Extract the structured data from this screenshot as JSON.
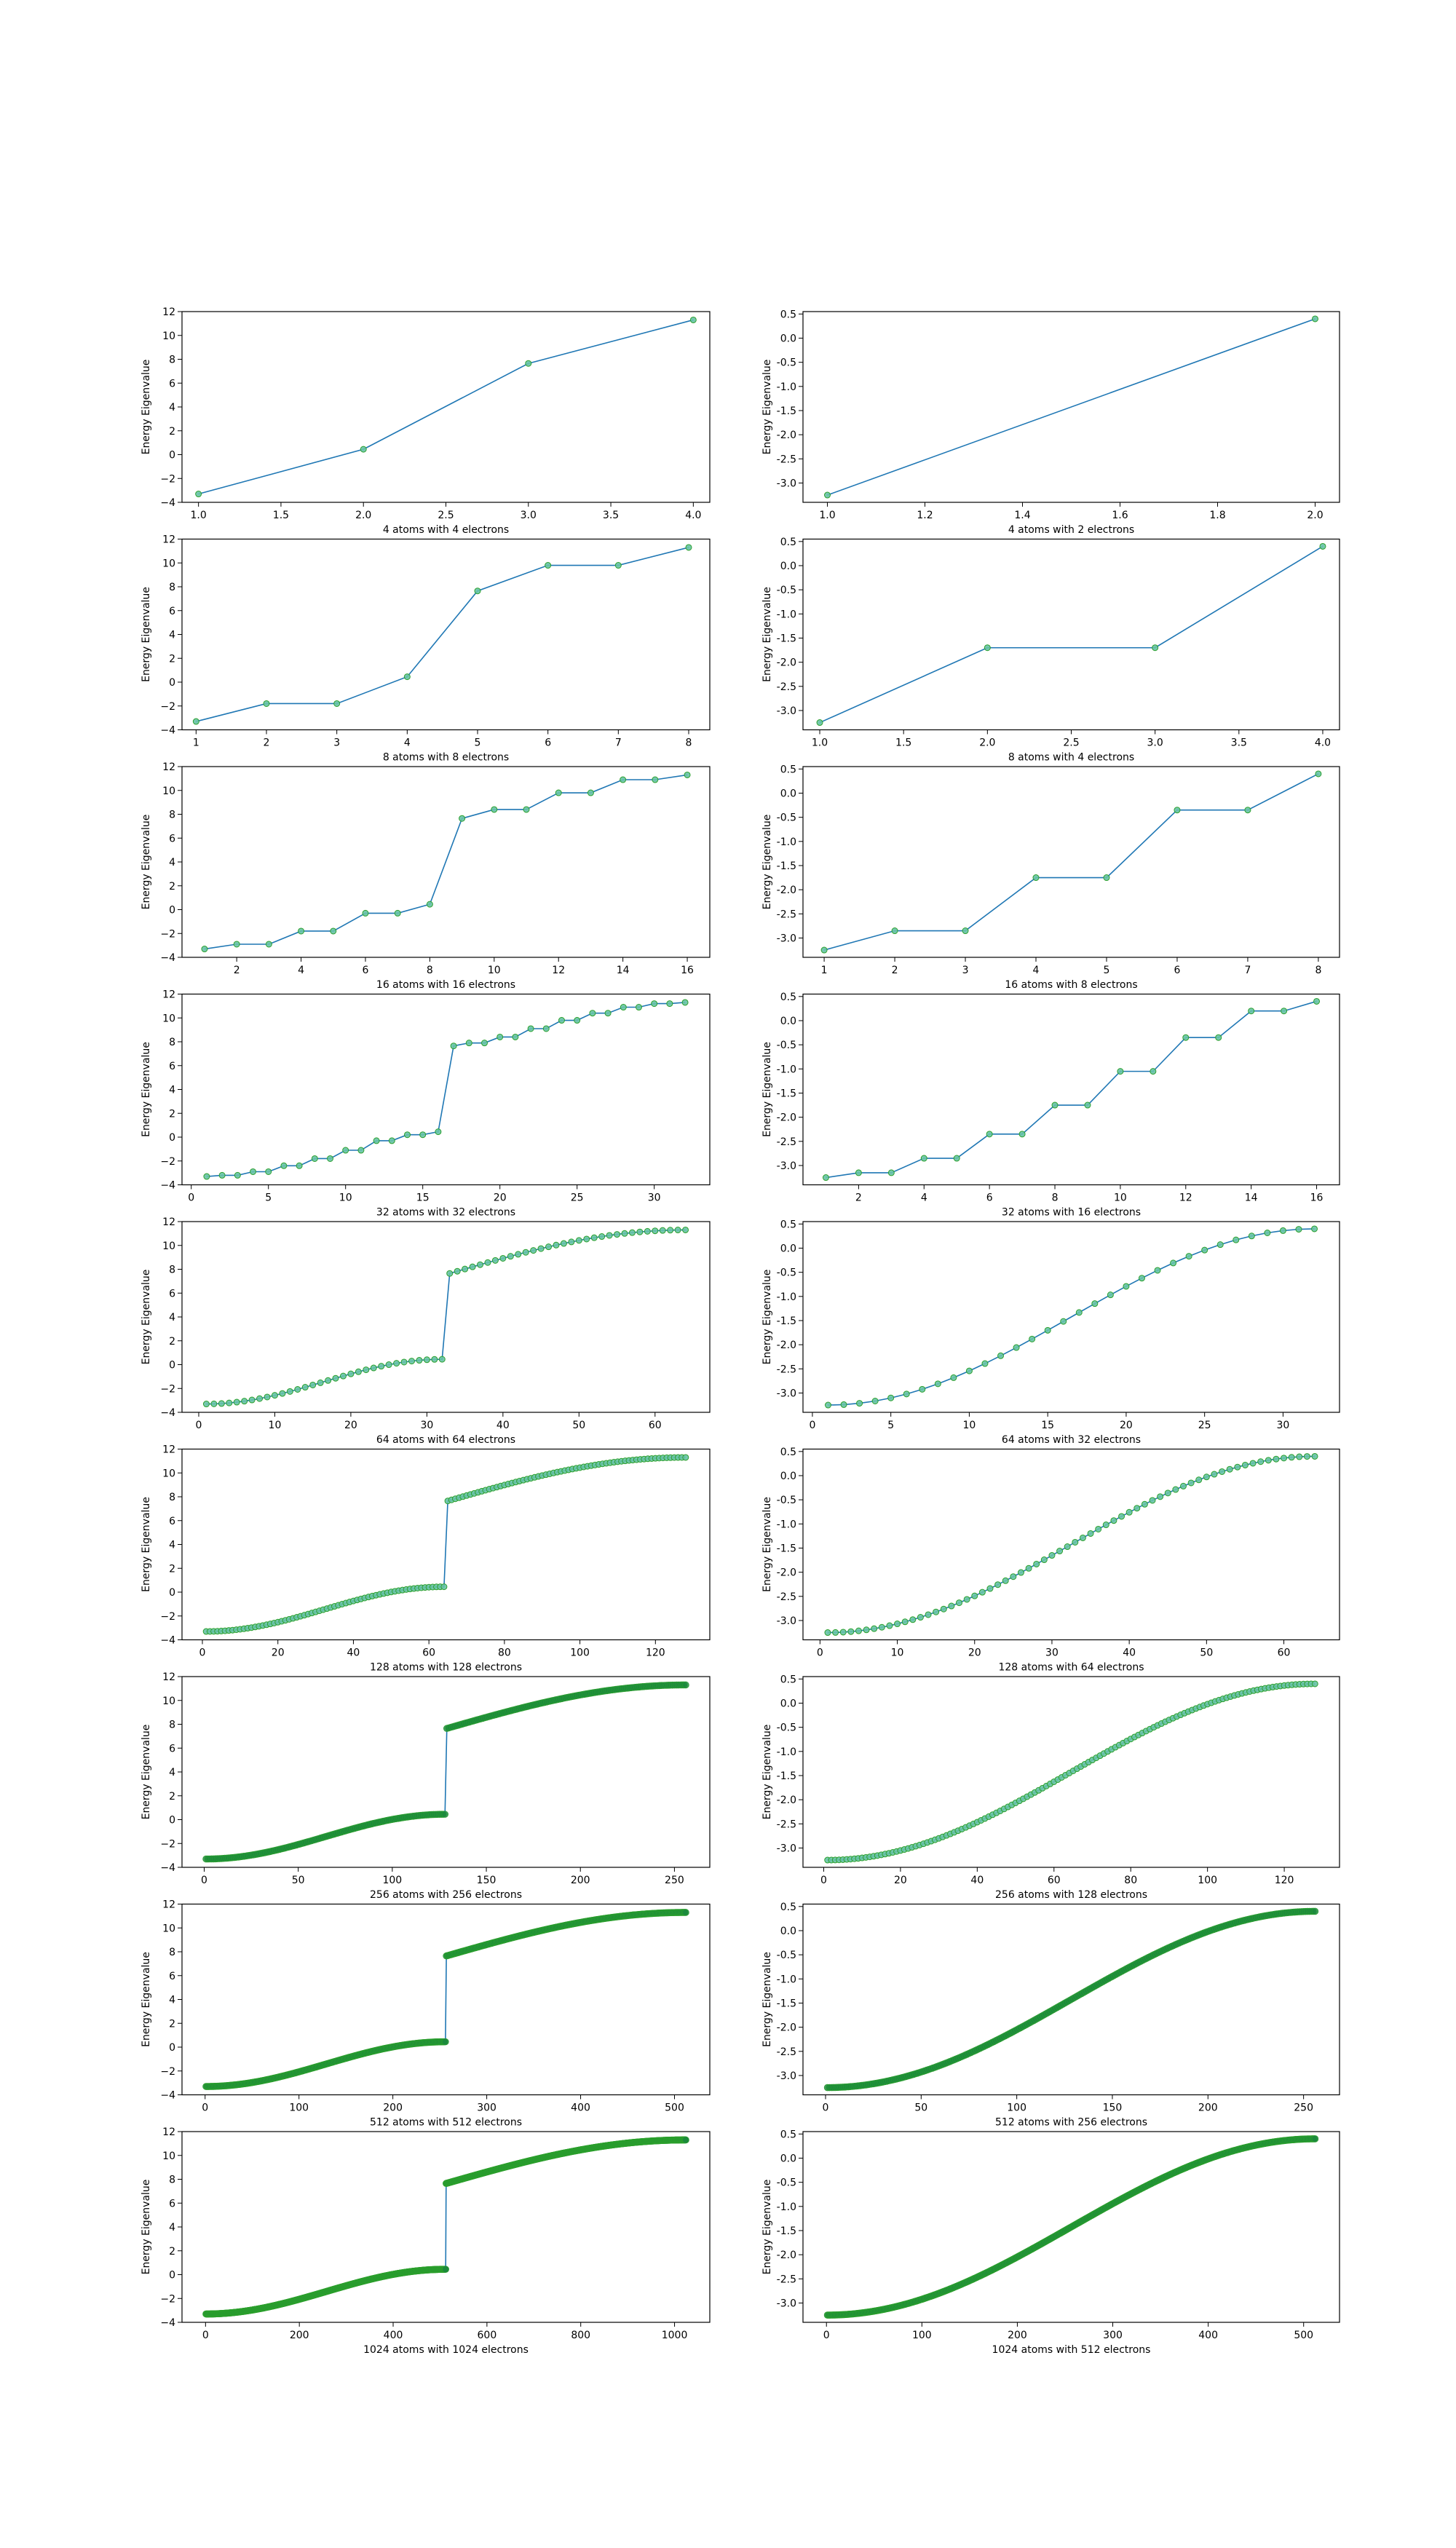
{
  "colors": {
    "line": "#1f77b4",
    "marker_fill": "#66c2a5",
    "marker_edge": "#2ca02c",
    "dense_marker": "#1b8a3c",
    "frame": "#000000"
  },
  "chart_data": [
    {
      "type": "line",
      "xlabel": "4 atoms with 4 electrons",
      "ylabel": "Energy Eigenvalue",
      "y": [
        -3.3,
        0.45,
        7.65,
        11.3
      ],
      "xlim": [
        0.9,
        4.1
      ],
      "ylim": [
        -4,
        12
      ],
      "xticks": [
        1.0,
        1.5,
        2.0,
        2.5,
        3.0,
        3.5,
        4.0
      ],
      "xticklabels": [
        "1.0",
        "1.5",
        "2.0",
        "2.5",
        "3.0",
        "3.5",
        "4.0"
      ],
      "yticks": [
        -4,
        -2,
        0,
        2,
        4,
        6,
        8,
        10,
        12
      ],
      "yticklabels": [
        "−4",
        "−2",
        "0",
        "2",
        "4",
        "6",
        "8",
        "10",
        "12"
      ]
    },
    {
      "type": "line",
      "xlabel": "4 atoms with 2 electrons",
      "ylabel": "Energy Eigenvalue",
      "y": [
        -3.25,
        0.4
      ],
      "xlim": [
        0.95,
        2.05
      ],
      "ylim": [
        -3.4,
        0.55
      ],
      "xticks": [
        1.0,
        1.2,
        1.4,
        1.6,
        1.8,
        2.0
      ],
      "xticklabels": [
        "1.0",
        "1.2",
        "1.4",
        "1.6",
        "1.8",
        "2.0"
      ],
      "yticks": [
        -3.0,
        -2.5,
        -2.0,
        -1.5,
        -1.0,
        -0.5,
        0.0,
        0.5
      ],
      "yticklabels": [
        "-3.0",
        "-2.5",
        "-2.0",
        "-1.5",
        "-1.0",
        "-0.5",
        "0.0",
        "0.5"
      ]
    },
    {
      "type": "line",
      "xlabel": "8 atoms with 8 electrons",
      "ylabel": "Energy Eigenvalue",
      "y": [
        -3.3,
        -1.8,
        -1.8,
        0.45,
        7.65,
        9.8,
        9.8,
        11.3
      ],
      "xlim": [
        0.8,
        8.3
      ],
      "ylim": [
        -4,
        12
      ],
      "xticks": [
        1,
        2,
        3,
        4,
        5,
        6,
        7,
        8
      ],
      "xticklabels": [
        "1",
        "2",
        "3",
        "4",
        "5",
        "6",
        "7",
        "8"
      ],
      "yticks": [
        -4,
        -2,
        0,
        2,
        4,
        6,
        8,
        10,
        12
      ],
      "yticklabels": [
        "−4",
        "−2",
        "0",
        "2",
        "4",
        "6",
        "8",
        "10",
        "12"
      ]
    },
    {
      "type": "line",
      "xlabel": "8 atoms with 4 electrons",
      "ylabel": "Energy Eigenvalue",
      "y": [
        -3.25,
        -1.7,
        -1.7,
        0.4
      ],
      "xlim": [
        0.9,
        4.1
      ],
      "ylim": [
        -3.4,
        0.55
      ],
      "xticks": [
        1.0,
        1.5,
        2.0,
        2.5,
        3.0,
        3.5,
        4.0
      ],
      "xticklabels": [
        "1.0",
        "1.5",
        "2.0",
        "2.5",
        "3.0",
        "3.5",
        "4.0"
      ],
      "yticks": [
        -3.0,
        -2.5,
        -2.0,
        -1.5,
        -1.0,
        -0.5,
        0.0,
        0.5
      ],
      "yticklabels": [
        "-3.0",
        "-2.5",
        "-2.0",
        "-1.5",
        "-1.0",
        "-0.5",
        "0.0",
        "0.5"
      ]
    },
    {
      "type": "line",
      "xlabel": "16 atoms with 16 electrons",
      "ylabel": "Energy Eigenvalue",
      "y": [
        -3.3,
        -2.9,
        -2.9,
        -1.8,
        -1.8,
        -0.3,
        -0.3,
        0.45,
        7.65,
        8.4,
        8.4,
        9.8,
        9.8,
        10.9,
        10.9,
        11.3
      ],
      "xlim": [
        0.3,
        16.7
      ],
      "ylim": [
        -4,
        12
      ],
      "xticks": [
        2,
        4,
        6,
        8,
        10,
        12,
        14,
        16
      ],
      "xticklabels": [
        "2",
        "4",
        "6",
        "8",
        "10",
        "12",
        "14",
        "16"
      ],
      "yticks": [
        -4,
        -2,
        0,
        2,
        4,
        6,
        8,
        10,
        12
      ],
      "yticklabels": [
        "−4",
        "−2",
        "0",
        "2",
        "4",
        "6",
        "8",
        "10",
        "12"
      ]
    },
    {
      "type": "line",
      "xlabel": "16 atoms with 8 electrons",
      "ylabel": "Energy Eigenvalue",
      "y": [
        -3.25,
        -2.85,
        -2.85,
        -1.75,
        -1.75,
        -0.35,
        -0.35,
        0.4
      ],
      "xlim": [
        0.7,
        8.3
      ],
      "ylim": [
        -3.4,
        0.55
      ],
      "xticks": [
        1,
        2,
        3,
        4,
        5,
        6,
        7,
        8
      ],
      "xticklabels": [
        "1",
        "2",
        "3",
        "4",
        "5",
        "6",
        "7",
        "8"
      ],
      "yticks": [
        -3.0,
        -2.5,
        -2.0,
        -1.5,
        -1.0,
        -0.5,
        0.0,
        0.5
      ],
      "yticklabels": [
        "-3.0",
        "-2.5",
        "-2.0",
        "-1.5",
        "-1.0",
        "-0.5",
        "0.0",
        "0.5"
      ]
    },
    {
      "type": "line",
      "xlabel": "32 atoms with 32 electrons",
      "ylabel": "Energy Eigenvalue",
      "y": [
        -3.3,
        -3.2,
        -3.2,
        -2.9,
        -2.9,
        -2.4,
        -2.4,
        -1.8,
        -1.8,
        -1.1,
        -1.1,
        -0.3,
        -0.3,
        0.2,
        0.2,
        0.45,
        7.65,
        7.9,
        7.9,
        8.4,
        8.4,
        9.1,
        9.1,
        9.8,
        9.8,
        10.4,
        10.4,
        10.9,
        10.9,
        11.2,
        11.2,
        11.3
      ],
      "xlim": [
        -0.6,
        33.6
      ],
      "ylim": [
        -4,
        12
      ],
      "xticks": [
        0,
        5,
        10,
        15,
        20,
        25,
        30
      ],
      "xticklabels": [
        "0",
        "5",
        "10",
        "15",
        "20",
        "25",
        "30"
      ],
      "yticks": [
        -4,
        -2,
        0,
        2,
        4,
        6,
        8,
        10,
        12
      ],
      "yticklabels": [
        "−4",
        "−2",
        "0",
        "2",
        "4",
        "6",
        "8",
        "10",
        "12"
      ]
    },
    {
      "type": "line",
      "xlabel": "32 atoms with 16 electrons",
      "ylabel": "Energy Eigenvalue",
      "y": [
        -3.25,
        -3.15,
        -3.15,
        -2.85,
        -2.85,
        -2.35,
        -2.35,
        -1.75,
        -1.75,
        -1.05,
        -1.05,
        -0.35,
        -0.35,
        0.2,
        0.2,
        0.4
      ],
      "xlim": [
        0.3,
        16.7
      ],
      "ylim": [
        -3.4,
        0.55
      ],
      "xticks": [
        2,
        4,
        6,
        8,
        10,
        12,
        14,
        16
      ],
      "xticklabels": [
        "2",
        "4",
        "6",
        "8",
        "10",
        "12",
        "14",
        "16"
      ],
      "yticks": [
        -3.0,
        -2.5,
        -2.0,
        -1.5,
        -1.0,
        -0.5,
        0.0,
        0.5
      ],
      "yticklabels": [
        "-3.0",
        "-2.5",
        "-2.0",
        "-1.5",
        "-1.0",
        "-0.5",
        "0.0",
        "0.5"
      ]
    },
    {
      "type": "line",
      "xlabel": "64 atoms with 64 electrons",
      "ylabel": "Energy Eigenvalue",
      "n": 64,
      "gap_at": 32,
      "lower_band": [
        -3.3,
        0.45
      ],
      "upper_band": [
        7.65,
        11.3
      ],
      "xlim": [
        -2.2,
        67.2
      ],
      "ylim": [
        -4,
        12
      ],
      "xticks": [
        0,
        10,
        20,
        30,
        40,
        50,
        60
      ],
      "xticklabels": [
        "0",
        "10",
        "20",
        "30",
        "40",
        "50",
        "60"
      ],
      "yticks": [
        -4,
        -2,
        0,
        2,
        4,
        6,
        8,
        10,
        12
      ],
      "yticklabels": [
        "−4",
        "−2",
        "0",
        "2",
        "4",
        "6",
        "8",
        "10",
        "12"
      ]
    },
    {
      "type": "line",
      "xlabel": "64 atoms with 32 electrons",
      "ylabel": "Energy Eigenvalue",
      "n": 32,
      "band": [
        -3.25,
        0.4
      ],
      "xlim": [
        -0.6,
        33.6
      ],
      "ylim": [
        -3.4,
        0.55
      ],
      "xticks": [
        0,
        5,
        10,
        15,
        20,
        25,
        30
      ],
      "xticklabels": [
        "0",
        "5",
        "10",
        "15",
        "20",
        "25",
        "30"
      ],
      "yticks": [
        -3.0,
        -2.5,
        -2.0,
        -1.5,
        -1.0,
        -0.5,
        0.0,
        0.5
      ],
      "yticklabels": [
        "-3.0",
        "-2.5",
        "-2.0",
        "-1.5",
        "-1.0",
        "-0.5",
        "0.0",
        "0.5"
      ]
    },
    {
      "type": "line",
      "xlabel": "128 atoms with 128 electrons",
      "ylabel": "Energy Eigenvalue",
      "n": 128,
      "gap_at": 64,
      "lower_band": [
        -3.3,
        0.45
      ],
      "upper_band": [
        7.65,
        11.3
      ],
      "xlim": [
        -5.4,
        134.4
      ],
      "ylim": [
        -4,
        12
      ],
      "xticks": [
        0,
        20,
        40,
        60,
        80,
        100,
        120
      ],
      "xticklabels": [
        "0",
        "20",
        "40",
        "60",
        "80",
        "100",
        "120"
      ],
      "yticks": [
        -4,
        -2,
        0,
        2,
        4,
        6,
        8,
        10,
        12
      ],
      "yticklabels": [
        "−4",
        "−2",
        "0",
        "2",
        "4",
        "6",
        "8",
        "10",
        "12"
      ]
    },
    {
      "type": "line",
      "xlabel": "128 atoms with 64 electrons",
      "ylabel": "Energy Eigenvalue",
      "n": 64,
      "band": [
        -3.25,
        0.4
      ],
      "xlim": [
        -2.2,
        67.2
      ],
      "ylim": [
        -3.4,
        0.55
      ],
      "xticks": [
        0,
        10,
        20,
        30,
        40,
        50,
        60
      ],
      "xticklabels": [
        "0",
        "10",
        "20",
        "30",
        "40",
        "50",
        "60"
      ],
      "yticks": [
        -3.0,
        -2.5,
        -2.0,
        -1.5,
        -1.0,
        -0.5,
        0.0,
        0.5
      ],
      "yticklabels": [
        "-3.0",
        "-2.5",
        "-2.0",
        "-1.5",
        "-1.0",
        "-0.5",
        "0.0",
        "0.5"
      ]
    },
    {
      "type": "line",
      "xlabel": "256 atoms with 256 electrons",
      "ylabel": "Energy Eigenvalue",
      "n": 256,
      "gap_at": 128,
      "lower_band": [
        -3.3,
        0.45
      ],
      "upper_band": [
        7.65,
        11.3
      ],
      "xlim": [
        -11.8,
        268.8
      ],
      "ylim": [
        -4,
        12
      ],
      "xticks": [
        0,
        50,
        100,
        150,
        200,
        250
      ],
      "xticklabels": [
        "0",
        "50",
        "100",
        "150",
        "200",
        "250"
      ],
      "yticks": [
        -4,
        -2,
        0,
        2,
        4,
        6,
        8,
        10,
        12
      ],
      "yticklabels": [
        "−4",
        "−2",
        "0",
        "2",
        "4",
        "6",
        "8",
        "10",
        "12"
      ]
    },
    {
      "type": "line",
      "xlabel": "256 atoms with 128 electrons",
      "ylabel": "Energy Eigenvalue",
      "n": 128,
      "band": [
        -3.25,
        0.4
      ],
      "xlim": [
        -5.4,
        134.4
      ],
      "ylim": [
        -3.4,
        0.55
      ],
      "xticks": [
        0,
        20,
        40,
        60,
        80,
        100,
        120
      ],
      "xticklabels": [
        "0",
        "20",
        "40",
        "60",
        "80",
        "100",
        "120"
      ],
      "yticks": [
        -3.0,
        -2.5,
        -2.0,
        -1.5,
        -1.0,
        -0.5,
        0.0,
        0.5
      ],
      "yticklabels": [
        "-3.0",
        "-2.5",
        "-2.0",
        "-1.5",
        "-1.0",
        "-0.5",
        "0.0",
        "0.5"
      ]
    },
    {
      "type": "line",
      "xlabel": "512 atoms with 512 electrons",
      "ylabel": "Energy Eigenvalue",
      "n": 512,
      "gap_at": 256,
      "lower_band": [
        -3.3,
        0.45
      ],
      "upper_band": [
        7.65,
        11.3
      ],
      "xlim": [
        -24.6,
        537.6
      ],
      "ylim": [
        -4,
        12
      ],
      "xticks": [
        0,
        100,
        200,
        300,
        400,
        500
      ],
      "xticklabels": [
        "0",
        "100",
        "200",
        "300",
        "400",
        "500"
      ],
      "yticks": [
        -4,
        -2,
        0,
        2,
        4,
        6,
        8,
        10,
        12
      ],
      "yticklabels": [
        "−4",
        "−2",
        "0",
        "2",
        "4",
        "6",
        "8",
        "10",
        "12"
      ]
    },
    {
      "type": "line",
      "xlabel": "512 atoms with 256 electrons",
      "ylabel": "Energy Eigenvalue",
      "n": 256,
      "band": [
        -3.25,
        0.4
      ],
      "xlim": [
        -11.8,
        268.8
      ],
      "ylim": [
        -3.4,
        0.55
      ],
      "xticks": [
        0,
        50,
        100,
        150,
        200,
        250
      ],
      "xticklabels": [
        "0",
        "50",
        "100",
        "150",
        "200",
        "250"
      ],
      "yticks": [
        -3.0,
        -2.5,
        -2.0,
        -1.5,
        -1.0,
        -0.5,
        0.0,
        0.5
      ],
      "yticklabels": [
        "-3.0",
        "-2.5",
        "-2.0",
        "-1.5",
        "-1.0",
        "-0.5",
        "0.0",
        "0.5"
      ]
    },
    {
      "type": "line",
      "xlabel": "1024 atoms with 1024 electrons",
      "ylabel": "Energy Eigenvalue",
      "n": 1024,
      "gap_at": 512,
      "lower_band": [
        -3.3,
        0.45
      ],
      "upper_band": [
        7.65,
        11.3
      ],
      "xlim": [
        -50.2,
        1075.2
      ],
      "ylim": [
        -4,
        12
      ],
      "xticks": [
        0,
        200,
        400,
        600,
        800,
        1000
      ],
      "xticklabels": [
        "0",
        "200",
        "400",
        "600",
        "800",
        "1000"
      ],
      "yticks": [
        -4,
        -2,
        0,
        2,
        4,
        6,
        8,
        10,
        12
      ],
      "yticklabels": [
        "−4",
        "−2",
        "0",
        "2",
        "4",
        "6",
        "8",
        "10",
        "12"
      ]
    },
    {
      "type": "line",
      "xlabel": "1024 atoms with 512 electrons",
      "ylabel": "Energy Eigenvalue",
      "n": 512,
      "band": [
        -3.25,
        0.4
      ],
      "xlim": [
        -24.6,
        537.6
      ],
      "ylim": [
        -3.4,
        0.55
      ],
      "xticks": [
        0,
        100,
        200,
        300,
        400,
        500
      ],
      "xticklabels": [
        "0",
        "100",
        "200",
        "300",
        "400",
        "500"
      ],
      "yticks": [
        -3.0,
        -2.5,
        -2.0,
        -1.5,
        -1.0,
        -0.5,
        0.0,
        0.5
      ],
      "yticklabels": [
        "-3.0",
        "-2.5",
        "-2.0",
        "-1.5",
        "-1.0",
        "-0.5",
        "0.0",
        "0.5"
      ]
    }
  ]
}
